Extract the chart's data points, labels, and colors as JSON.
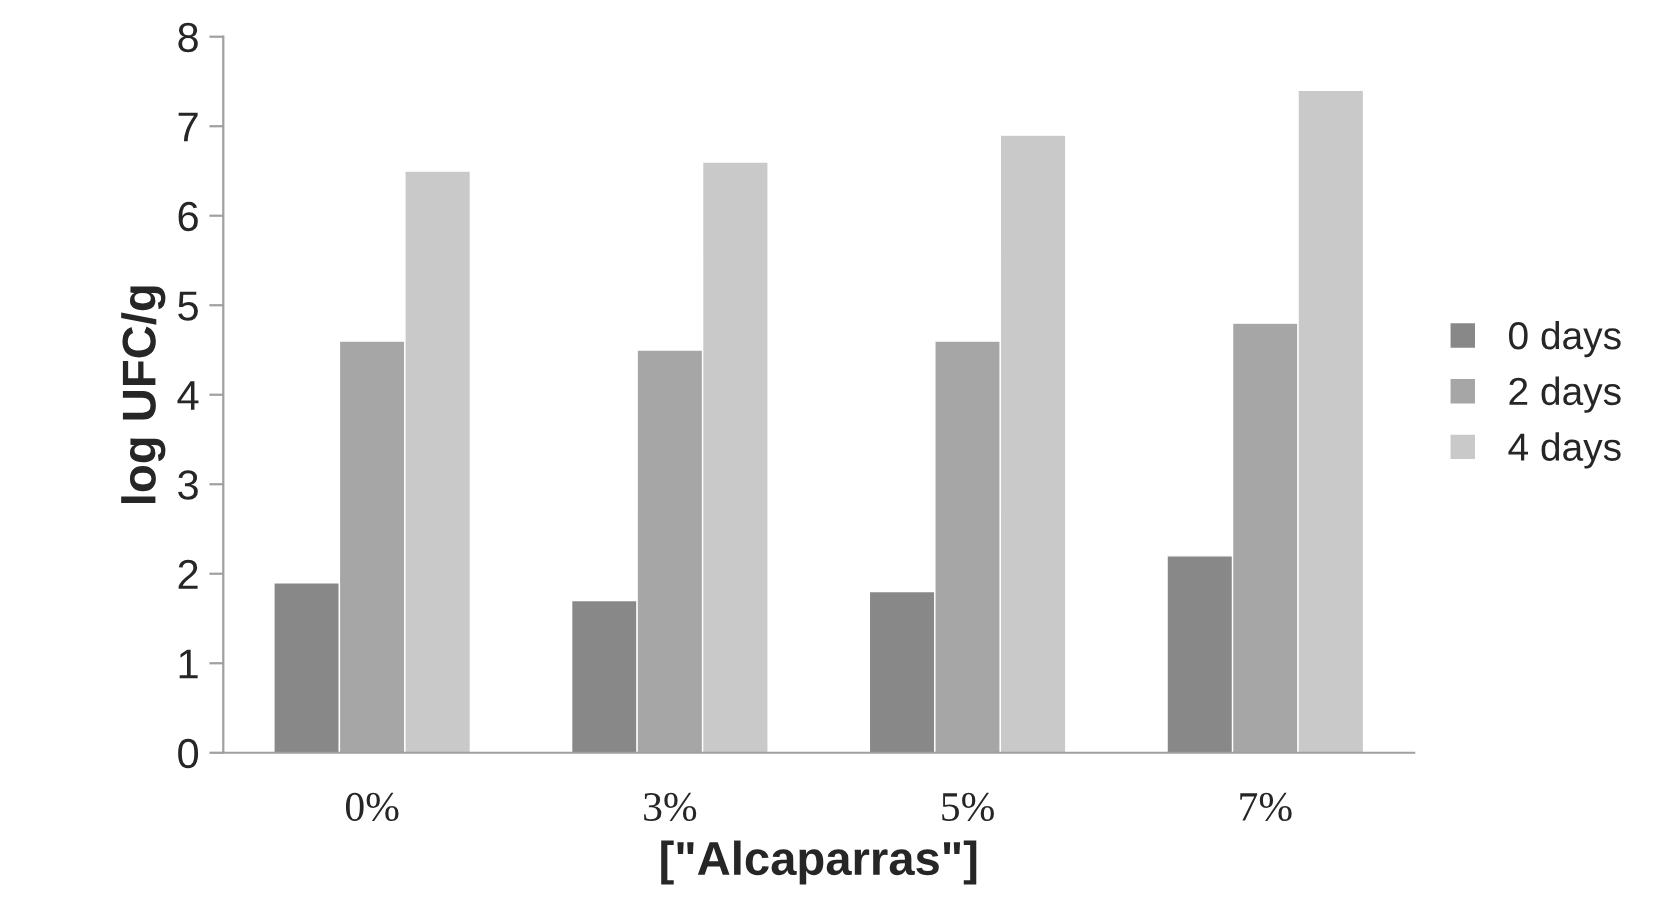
{
  "chart_data": {
    "type": "bar",
    "xlabel": "[\"Alcaparras\"]",
    "ylabel": "log UFC/g",
    "categories": [
      "0%",
      "3%",
      "5%",
      "7%"
    ],
    "series": [
      {
        "name": "0 days",
        "color": "#888888",
        "values": [
          1.9,
          1.7,
          1.8,
          2.2
        ]
      },
      {
        "name": "2 days",
        "color": "#a6a6a6",
        "values": [
          4.6,
          4.5,
          4.6,
          4.8
        ]
      },
      {
        "name": "4 days",
        "color": "#c9c9c9",
        "values": [
          6.5,
          6.6,
          6.9,
          7.4
        ]
      }
    ],
    "ylim": [
      0,
      8
    ],
    "yticks": [
      0,
      1,
      2,
      3,
      4,
      5,
      6,
      7,
      8
    ],
    "grid": false,
    "legend": "right"
  }
}
